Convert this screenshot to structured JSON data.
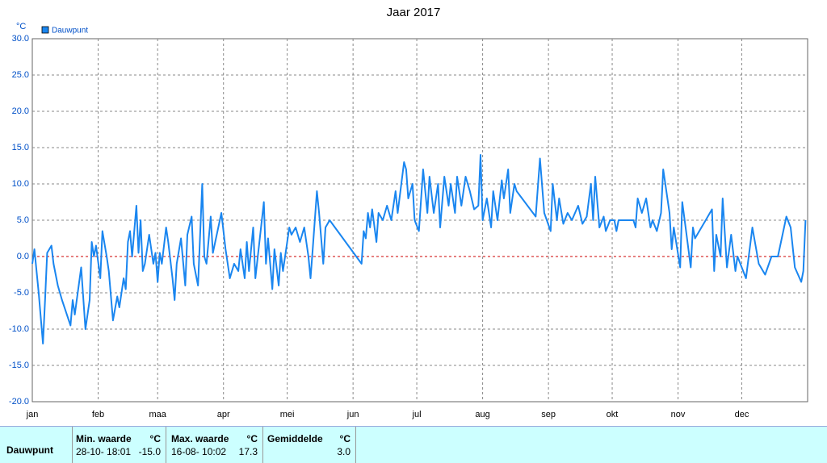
{
  "chart_data": {
    "type": "line",
    "title": "Jaar 2017",
    "y_unit": "°C",
    "x": [
      0,
      1,
      3,
      5,
      6,
      7,
      9,
      10,
      12,
      14,
      18,
      19,
      20,
      23,
      25,
      27,
      28,
      29,
      30,
      32,
      33,
      35,
      36,
      38,
      40,
      41,
      43,
      44,
      45,
      46,
      47,
      49,
      50,
      51,
      52,
      53,
      55,
      57,
      58,
      59,
      60,
      61,
      63,
      64,
      66,
      67,
      68,
      70,
      72,
      73,
      75,
      76,
      78,
      80,
      81,
      82,
      84,
      85,
      89,
      91,
      93,
      95,
      97,
      98,
      100,
      101,
      102,
      104,
      105,
      109,
      110,
      111,
      113,
      114,
      116,
      117,
      118,
      121,
      122,
      124,
      126,
      128,
      130,
      131,
      132,
      134,
      135,
      137,
      138,
      140,
      155,
      156,
      157,
      158,
      159,
      160,
      162,
      163,
      165,
      167,
      169,
      171,
      172,
      175,
      176,
      177,
      179,
      180,
      182,
      184,
      186,
      187,
      189,
      191,
      192,
      194,
      196,
      197,
      199,
      200,
      202,
      204,
      206,
      208,
      210,
      211,
      212,
      214,
      216,
      217,
      219,
      221,
      222,
      224,
      225,
      227,
      228,
      237,
      239,
      241,
      244,
      245,
      247,
      248,
      250,
      252,
      254,
      257,
      259,
      261,
      263,
      264,
      265,
      267,
      269,
      270,
      272,
      274,
      275,
      276,
      283,
      284,
      285,
      287,
      289,
      291,
      292,
      294,
      296,
      297,
      300,
      301,
      302,
      305,
      306,
      308,
      310,
      311,
      312,
      317,
      320,
      321,
      322,
      324,
      325,
      327,
      329,
      331,
      332,
      336,
      339,
      342,
      345,
      348,
      351,
      355,
      357,
      359,
      362,
      363,
      364
    ],
    "series": [
      {
        "name": "Dauwpunt",
        "color": "#1a86f0",
        "values": [
          -1,
          1,
          -5,
          -12,
          -6,
          0.5,
          1.5,
          -1,
          -4,
          -6,
          -9.5,
          -6,
          -8,
          -1.5,
          -10,
          -6,
          2,
          0,
          1.5,
          -3,
          3.5,
          0,
          -2,
          -8.8,
          -5.5,
          -7,
          -3,
          -4.5,
          2,
          3.5,
          0,
          7,
          0.5,
          5,
          -2,
          -1,
          3,
          -1,
          0.5,
          -3.5,
          0.5,
          -1,
          4,
          2,
          -3,
          -6,
          -1,
          2.5,
          -4,
          3,
          5.5,
          -1,
          -4,
          10,
          0,
          -1,
          5.5,
          0.5,
          6,
          1,
          -3,
          -1,
          -2,
          1,
          -3,
          2,
          -2,
          4,
          -3,
          7.5,
          -1,
          2.5,
          -4.5,
          1,
          -4,
          0.5,
          -2,
          4,
          3,
          4,
          2,
          4,
          0,
          -3,
          1,
          9,
          6,
          -1,
          4,
          5,
          -1,
          3.5,
          2.5,
          6,
          4,
          6.5,
          2,
          6,
          5,
          7,
          5,
          9,
          6,
          13,
          12,
          8,
          10,
          5,
          3.5,
          12,
          6,
          11,
          6,
          10,
          4,
          11,
          7,
          10,
          6,
          11,
          7,
          11,
          9,
          6.5,
          7,
          14,
          5,
          8,
          4,
          9,
          5,
          10.5,
          8,
          12,
          6,
          10,
          9,
          5.5,
          13.5,
          6,
          3.5,
          10,
          5,
          8,
          4.5,
          6,
          5,
          7,
          4.5,
          5.5,
          10,
          5,
          11,
          4,
          5.5,
          3.5,
          5,
          5,
          3.5,
          5,
          5,
          4,
          8,
          6,
          8,
          4,
          5,
          3.5,
          6,
          12,
          6,
          1,
          4,
          -1.5,
          7.5,
          3,
          -1.5,
          4,
          2.5,
          5,
          6.5,
          -2,
          3,
          0,
          8,
          -1.5,
          3,
          -2,
          0,
          -3,
          4,
          -1,
          -2.5,
          0,
          0,
          5.5,
          4,
          -1.5,
          -3.5,
          -2,
          5
        ]
      }
    ],
    "xlim": [
      0,
      365
    ],
    "xticks": [
      {
        "value": 0,
        "label": "jan"
      },
      {
        "value": 31,
        "label": "feb"
      },
      {
        "value": 59,
        "label": "maa"
      },
      {
        "value": 90,
        "label": "apr"
      },
      {
        "value": 120,
        "label": "mei"
      },
      {
        "value": 151,
        "label": "jun"
      },
      {
        "value": 181,
        "label": "jul"
      },
      {
        "value": 212,
        "label": "aug"
      },
      {
        "value": 243,
        "label": "sep"
      },
      {
        "value": 273,
        "label": "okt"
      },
      {
        "value": 304,
        "label": "nov"
      },
      {
        "value": 334,
        "label": "dec"
      }
    ],
    "ylim": [
      -20,
      30
    ],
    "yticks": [
      {
        "value": -20,
        "label": "-20.0"
      },
      {
        "value": -15,
        "label": "-15.0"
      },
      {
        "value": -10,
        "label": "-10.0"
      },
      {
        "value": -5,
        "label": "-5.0"
      },
      {
        "value": 0,
        "label": "0.0"
      },
      {
        "value": 5,
        "label": "5.0"
      },
      {
        "value": 10,
        "label": "10.0"
      },
      {
        "value": 15,
        "label": "15.0"
      },
      {
        "value": 20,
        "label": "20.0"
      },
      {
        "value": 25,
        "label": "25.0"
      },
      {
        "value": 30,
        "label": "30.0"
      }
    ],
    "grid": true,
    "zero_line_color": "#cc0000"
  },
  "stats": {
    "headers": [
      "Min. waarde",
      "°C",
      "Max. waarde",
      "°C",
      "Gemiddelde",
      "°C"
    ],
    "rows": [
      [
        "Dauwpunt",
        "28-10- 18:01",
        "-15.0",
        "16-08- 10:02",
        "17.3",
        "3.0"
      ]
    ]
  }
}
